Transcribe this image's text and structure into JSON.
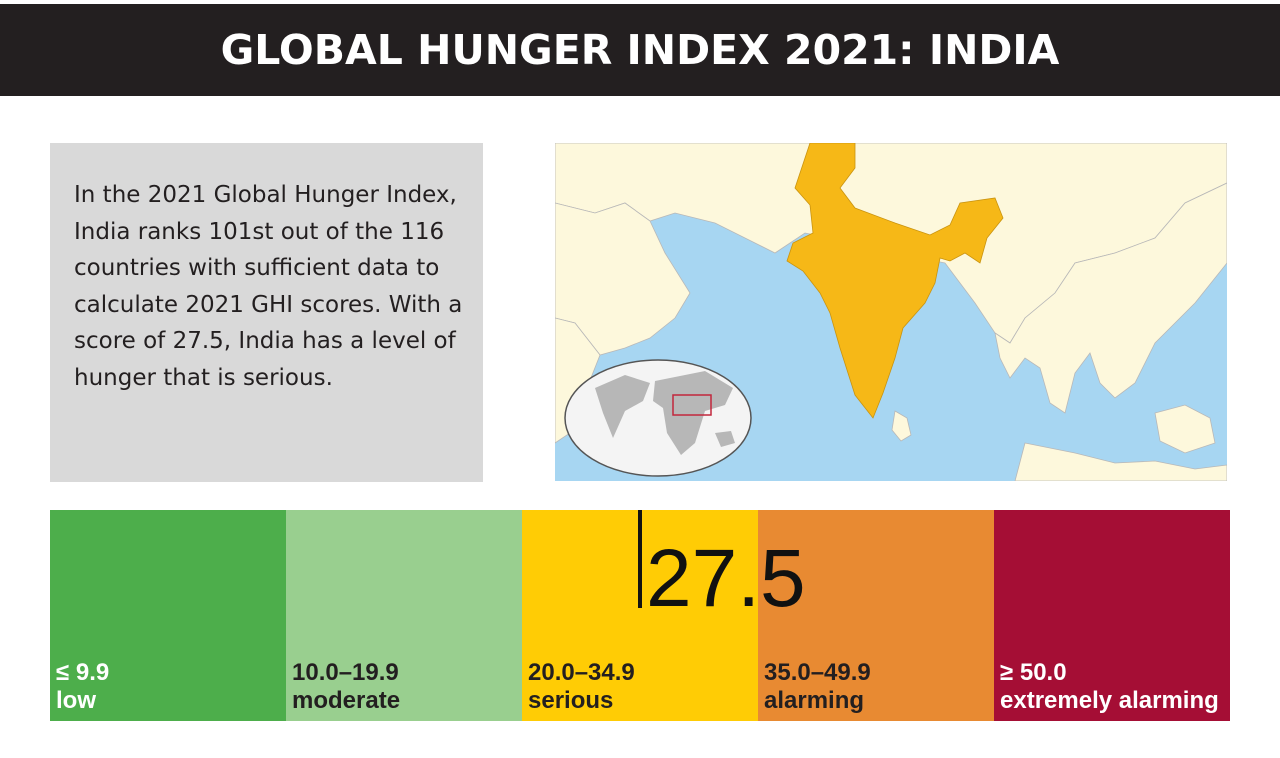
{
  "header": {
    "title": "GLOBAL HUNGER INDEX 2021: INDIA"
  },
  "summary": {
    "text": "In the 2021 Global Hunger Index, India ranks 101st out of the 116 countries with sufficient data to calculate 2021 GHI scores. With a score of 27.5, India has a level of hunger that is serious."
  },
  "map": {
    "highlight_color": "#f6b817",
    "sea_color": "#a7d6f2",
    "land_color": "#fdf8dc",
    "icon": "world-locator-map"
  },
  "chart_data": {
    "type": "bar",
    "title": "",
    "scale_min": 0,
    "scale_max": 65,
    "marker": {
      "value": 27.5,
      "label": "27.5"
    },
    "bands": [
      {
        "range": "≤ 9.9",
        "label": "low",
        "min": 0,
        "max": 10,
        "color": "#4dae4b",
        "text_color": "#ffffff"
      },
      {
        "range": "10.0–19.9",
        "label": "moderate",
        "min": 10,
        "max": 20,
        "color": "#99cf8f",
        "text_color": "#231f20"
      },
      {
        "range": "20.0–34.9",
        "label": "serious",
        "min": 20,
        "max": 35,
        "color": "#ffcc05",
        "text_color": "#231f20"
      },
      {
        "range": "35.0–49.9",
        "label": "alarming",
        "min": 35,
        "max": 50,
        "color": "#e88a32",
        "text_color": "#231f20"
      },
      {
        "range": "≥ 50.0",
        "label": "extremely alarming",
        "min": 50,
        "max": 65,
        "color": "#a50e35",
        "text_color": "#ffffff"
      }
    ]
  }
}
